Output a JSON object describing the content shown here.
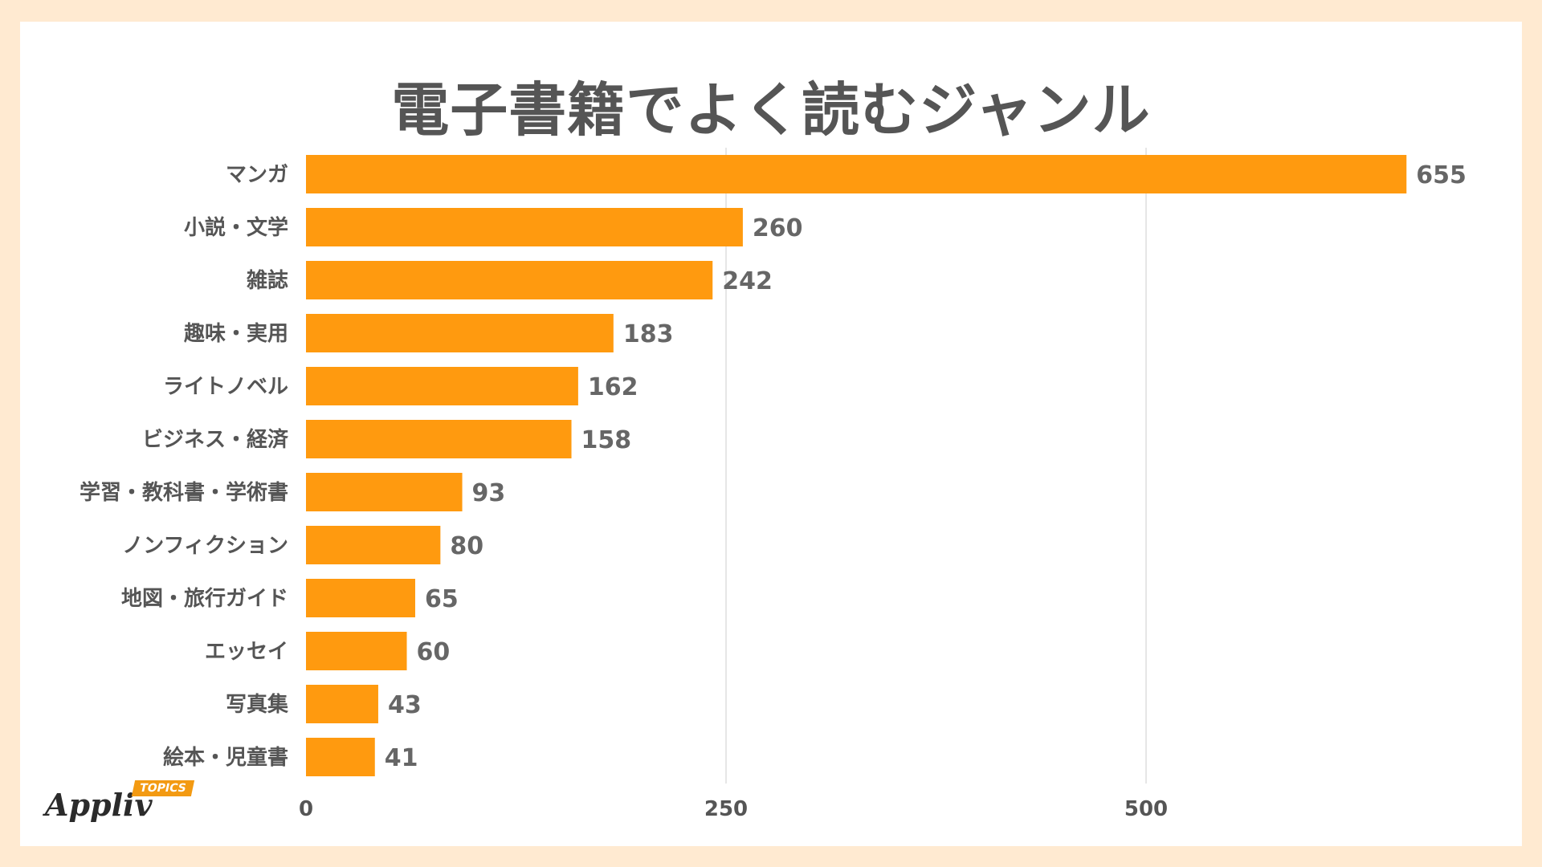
{
  "chart_data": {
    "type": "bar",
    "orientation": "horizontal",
    "title": "電子書籍でよく読むジャンル",
    "categories": [
      "マンガ",
      "小説・文学",
      "雑誌",
      "趣味・実用",
      "ライトノベル",
      "ビジネス・経済",
      "学習・教科書・学術書",
      "ノンフィクション",
      "地図・旅行ガイド",
      "エッセイ",
      "写真集",
      "絵本・児童書"
    ],
    "values": [
      655,
      260,
      242,
      183,
      162,
      158,
      93,
      80,
      65,
      60,
      43,
      41
    ],
    "xticks": [
      0,
      250,
      500
    ],
    "xlim": [
      0,
      690
    ],
    "grid": true,
    "bar_color": "#ff9a0f",
    "grid_color": "#dddddd"
  },
  "brand": {
    "name": "Appliv",
    "badge": "TOPICS",
    "badge_color": "#f39a12"
  }
}
